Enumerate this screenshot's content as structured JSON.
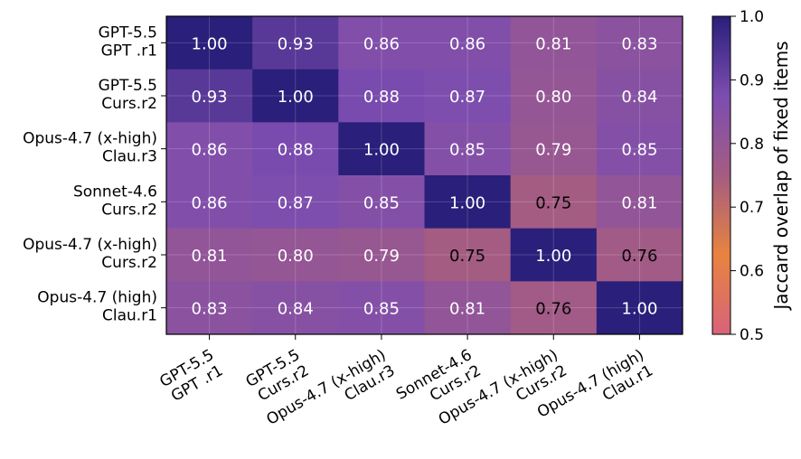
{
  "chart_data": {
    "type": "heatmap",
    "title": "",
    "row_labels": [
      [
        "GPT-5.5",
        "GPT .r1"
      ],
      [
        "GPT-5.5",
        "Curs.r2"
      ],
      [
        "Opus-4.7 (x-high)",
        "Clau.r3"
      ],
      [
        "Sonnet-4.6",
        "Curs.r2"
      ],
      [
        "Opus-4.7 (x-high)",
        "Curs.r2"
      ],
      [
        "Opus-4.7 (high)",
        "Clau.r1"
      ]
    ],
    "col_labels": [
      [
        "GPT-5.5",
        "GPT .r1"
      ],
      [
        "GPT-5.5",
        "Curs.r2"
      ],
      [
        "Opus-4.7 (x-high)",
        "Clau.r3"
      ],
      [
        "Sonnet-4.6",
        "Curs.r2"
      ],
      [
        "Opus-4.7 (x-high)",
        "Curs.r2"
      ],
      [
        "Opus-4.7 (high)",
        "Clau.r1"
      ]
    ],
    "values": [
      [
        1.0,
        0.93,
        0.86,
        0.86,
        0.81,
        0.83
      ],
      [
        0.93,
        1.0,
        0.88,
        0.87,
        0.8,
        0.84
      ],
      [
        0.86,
        0.88,
        1.0,
        0.85,
        0.79,
        0.85
      ],
      [
        0.86,
        0.87,
        0.85,
        1.0,
        0.75,
        0.81
      ],
      [
        0.81,
        0.8,
        0.79,
        0.75,
        1.0,
        0.76
      ],
      [
        0.83,
        0.84,
        0.85,
        0.81,
        0.76,
        1.0
      ]
    ],
    "value_format": "0.00",
    "colorbar": {
      "label": "Jaccard overlap of fixed items",
      "range": [
        0.5,
        1.0
      ],
      "ticks": [
        "0.5",
        "0.6",
        "0.7",
        "0.8",
        "0.9",
        "1.0"
      ],
      "colormap": [
        "#d8637a",
        "#e8833f",
        "#a45c82",
        "#7c4db0",
        "#2a1f7a"
      ]
    },
    "grid": true
  }
}
